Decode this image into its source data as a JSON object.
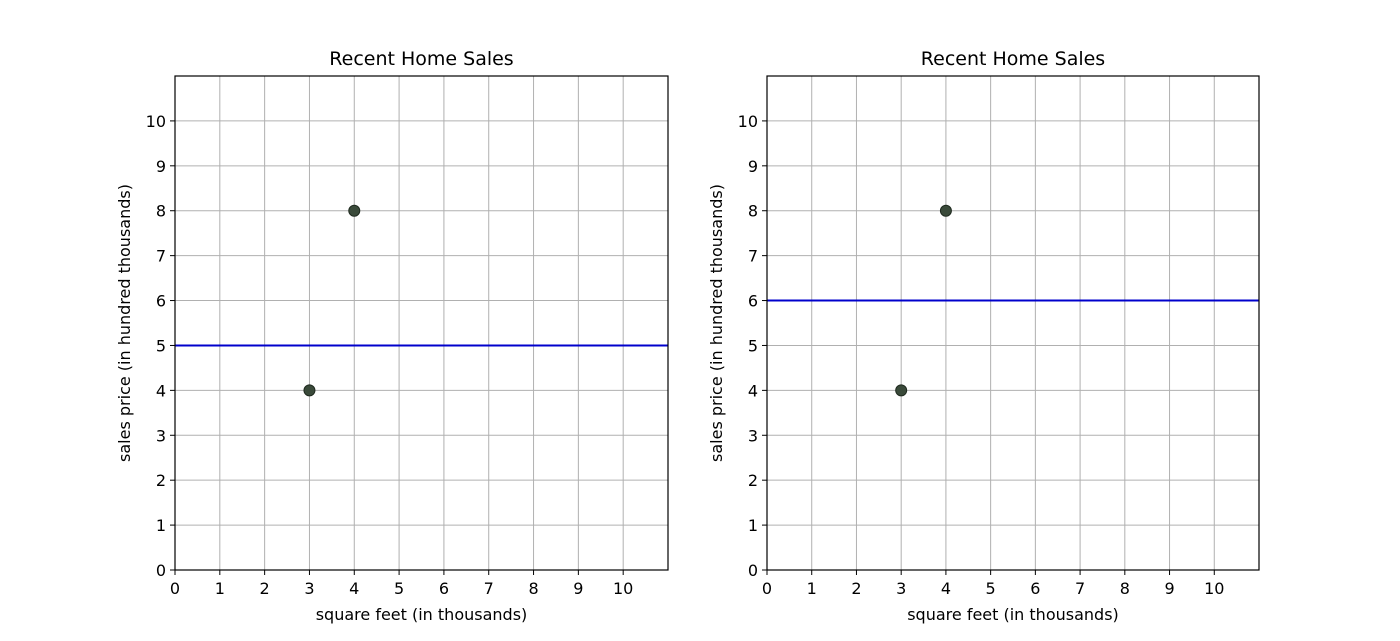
{
  "chart_data": [
    {
      "type": "scatter",
      "title": "Recent Home Sales",
      "xlabel": "square feet (in thousands)",
      "ylabel": "sales price (in hundred thousands)",
      "xlim": [
        0,
        11
      ],
      "ylim": [
        0,
        11
      ],
      "xticks": [
        0,
        1,
        2,
        3,
        4,
        5,
        6,
        7,
        8,
        9,
        10
      ],
      "yticks": [
        0,
        1,
        2,
        3,
        4,
        5,
        6,
        7,
        8,
        9,
        10
      ],
      "grid": true,
      "points": [
        {
          "x": 3,
          "y": 4
        },
        {
          "x": 4,
          "y": 8
        }
      ],
      "hline": {
        "y": 5,
        "color": "#0000cc"
      },
      "marker_color": "#3a4a3a"
    },
    {
      "type": "scatter",
      "title": "Recent Home Sales",
      "xlabel": "square feet (in thousands)",
      "ylabel": "sales price (in hundred thousands)",
      "xlim": [
        0,
        11
      ],
      "ylim": [
        0,
        11
      ],
      "xticks": [
        0,
        1,
        2,
        3,
        4,
        5,
        6,
        7,
        8,
        9,
        10
      ],
      "yticks": [
        0,
        1,
        2,
        3,
        4,
        5,
        6,
        7,
        8,
        9,
        10
      ],
      "grid": true,
      "points": [
        {
          "x": 3,
          "y": 4
        },
        {
          "x": 4,
          "y": 8
        }
      ],
      "hline": {
        "y": 6,
        "color": "#0000cc"
      },
      "marker_color": "#3a4a3a"
    }
  ]
}
